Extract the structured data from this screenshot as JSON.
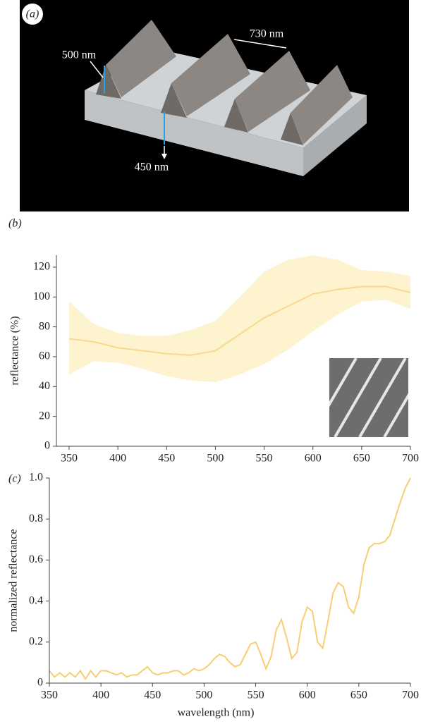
{
  "panel_a": {
    "label": "(a)",
    "annotations": [
      "500 nm",
      "730 nm",
      "450 nm"
    ]
  },
  "chart_data": [
    {
      "type": "line",
      "panel_label": "(b)",
      "ylabel": "reflectance (%)",
      "x": [
        350,
        375,
        400,
        425,
        450,
        475,
        500,
        525,
        550,
        575,
        600,
        625,
        650,
        675,
        700
      ],
      "series": [
        {
          "color": "#f6d98c",
          "band_color": "#fdf3cf",
          "values": [
            72,
            70,
            66,
            64,
            62,
            61,
            64,
            75,
            86,
            94,
            102,
            105,
            107,
            107,
            103
          ],
          "lower": [
            48,
            57,
            56,
            52,
            47,
            44,
            43,
            48,
            55,
            65,
            77,
            88,
            97,
            98,
            92
          ],
          "upper": [
            97,
            82,
            76,
            74,
            74,
            78,
            84,
            100,
            117,
            125,
            128,
            125,
            118,
            117,
            114
          ]
        }
      ],
      "xlim": [
        337,
        700
      ],
      "xticks": [
        350,
        400,
        450,
        500,
        550,
        600,
        650,
        700
      ],
      "ylim": [
        0,
        128
      ],
      "yticks": [
        0,
        20,
        40,
        60,
        80,
        100,
        120
      ]
    },
    {
      "type": "line",
      "panel_label": "(c)",
      "xlabel": "wavelength (nm)",
      "ylabel": "normalized reflectance",
      "x": [
        350,
        355,
        360,
        365,
        370,
        375,
        380,
        385,
        390,
        395,
        400,
        405,
        410,
        415,
        420,
        425,
        430,
        435,
        440,
        445,
        450,
        455,
        460,
        465,
        470,
        475,
        480,
        485,
        490,
        495,
        500,
        505,
        510,
        515,
        520,
        525,
        530,
        535,
        540,
        545,
        550,
        555,
        560,
        565,
        570,
        575,
        580,
        585,
        590,
        595,
        600,
        605,
        610,
        615,
        620,
        625,
        630,
        635,
        640,
        645,
        650,
        655,
        660,
        665,
        670,
        675,
        680,
        685,
        690,
        695,
        700
      ],
      "series": [
        {
          "color": "#f6cf72",
          "values": [
            0.06,
            0.03,
            0.05,
            0.03,
            0.05,
            0.03,
            0.06,
            0.02,
            0.06,
            0.03,
            0.06,
            0.06,
            0.05,
            0.04,
            0.05,
            0.03,
            0.04,
            0.04,
            0.06,
            0.08,
            0.05,
            0.04,
            0.05,
            0.05,
            0.06,
            0.06,
            0.04,
            0.05,
            0.07,
            0.06,
            0.07,
            0.09,
            0.12,
            0.14,
            0.13,
            0.1,
            0.08,
            0.09,
            0.14,
            0.19,
            0.2,
            0.14,
            0.07,
            0.13,
            0.26,
            0.31,
            0.22,
            0.12,
            0.15,
            0.3,
            0.37,
            0.35,
            0.2,
            0.17,
            0.3,
            0.44,
            0.49,
            0.47,
            0.37,
            0.34,
            0.42,
            0.58,
            0.66,
            0.68,
            0.68,
            0.69,
            0.72,
            0.8,
            0.88,
            0.95,
            1.0
          ]
        }
      ],
      "xlim": [
        350,
        700
      ],
      "xticks": [
        350,
        400,
        450,
        500,
        550,
        600,
        650,
        700
      ],
      "ylim": [
        0,
        1
      ],
      "yticks": [
        0,
        0.2,
        0.4,
        0.6,
        0.8,
        {
          "value": 1,
          "label": "1.0"
        }
      ]
    }
  ]
}
